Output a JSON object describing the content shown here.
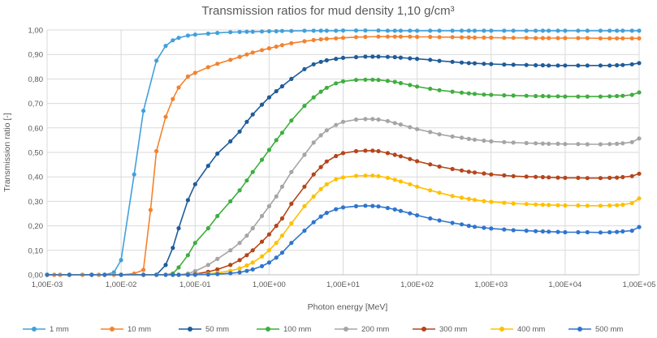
{
  "chart_data": {
    "type": "line",
    "title": "Transmission ratios for mud density 1,10 g/cm³",
    "xlabel": "Photon energy [MeV]",
    "ylabel": "Transmission ratio [-]",
    "xscale": "log",
    "xlim": [
      0.001,
      100000
    ],
    "ylim": [
      0,
      1
    ],
    "grid": true,
    "legend_position": "bottom",
    "x_tick_labels": [
      "1,00E-03",
      "1,00E-02",
      "1,00E-01",
      "1,00E+00",
      "1,00E+01",
      "1,00E+02",
      "1,00E+03",
      "1,00E+04",
      "1,00E+05"
    ],
    "y_tick_labels": [
      "0,00",
      "0,10",
      "0,20",
      "0,30",
      "0,40",
      "0,50",
      "0,60",
      "0,70",
      "0,80",
      "0,90",
      "1,00"
    ],
    "y_ticks": [
      0,
      0.1,
      0.2,
      0.3,
      0.4,
      0.5,
      0.6,
      0.7,
      0.8,
      0.9,
      1.0
    ],
    "x_ticks": [
      0.001,
      0.01,
      0.1,
      1,
      10,
      100,
      1000,
      10000,
      100000
    ],
    "series": [
      {
        "name": "1 mm",
        "color": "#41A0DC",
        "x": [
          0.001,
          0.00125,
          0.0015,
          0.002,
          0.003,
          0.004,
          0.005,
          0.006,
          0.008,
          0.01,
          0.015,
          0.02,
          0.03,
          0.04,
          0.05,
          0.06,
          0.08,
          0.1,
          0.15,
          0.2,
          0.3,
          0.4,
          0.5,
          0.6,
          0.8,
          1,
          1.25,
          1.5,
          2,
          3,
          4,
          5,
          6,
          8,
          10,
          15,
          20,
          30,
          40,
          50,
          60,
          80,
          100,
          150,
          200,
          300,
          400,
          500,
          600,
          800,
          1000,
          1500,
          2000,
          3000,
          4000,
          5000,
          6000,
          8000,
          10000,
          15000,
          20000,
          30000,
          40000,
          50000,
          60000,
          80000,
          100000
        ],
        "y": [
          0,
          0,
          0,
          0,
          0,
          0,
          0,
          0,
          0.01,
          0.06,
          0.41,
          0.67,
          0.875,
          0.935,
          0.958,
          0.968,
          0.977,
          0.981,
          0.985,
          0.988,
          0.991,
          0.992,
          0.993,
          0.993,
          0.994,
          0.995,
          0.995,
          0.996,
          0.996,
          0.997,
          0.997,
          0.997,
          0.997,
          0.997,
          0.998,
          0.998,
          0.998,
          0.998,
          0.997,
          0.997,
          0.997,
          0.997,
          0.997,
          0.997,
          0.997,
          0.997,
          0.997,
          0.997,
          0.997,
          0.997,
          0.997,
          0.997,
          0.997,
          0.997,
          0.997,
          0.997,
          0.997,
          0.997,
          0.997,
          0.997,
          0.997,
          0.997,
          0.997,
          0.997,
          0.997,
          0.997,
          0.997
        ]
      },
      {
        "name": "10 mm",
        "color": "#F5822D",
        "x": [
          0.001,
          0.00125,
          0.0015,
          0.002,
          0.003,
          0.004,
          0.005,
          0.006,
          0.008,
          0.01,
          0.015,
          0.02,
          0.025,
          0.03,
          0.04,
          0.05,
          0.06,
          0.08,
          0.1,
          0.15,
          0.2,
          0.3,
          0.4,
          0.5,
          0.6,
          0.8,
          1,
          1.25,
          1.5,
          2,
          3,
          4,
          5,
          6,
          8,
          10,
          15,
          20,
          30,
          40,
          50,
          60,
          80,
          100,
          150,
          200,
          300,
          400,
          500,
          600,
          800,
          1000,
          1500,
          2000,
          3000,
          4000,
          5000,
          6000,
          8000,
          10000,
          15000,
          20000,
          30000,
          40000,
          50000,
          60000,
          80000,
          100000
        ],
        "y": [
          0,
          0,
          0,
          0,
          0,
          0,
          0,
          0,
          0,
          0,
          0.005,
          0.02,
          0.265,
          0.505,
          0.645,
          0.718,
          0.765,
          0.81,
          0.825,
          0.848,
          0.862,
          0.878,
          0.89,
          0.9,
          0.908,
          0.918,
          0.925,
          0.932,
          0.938,
          0.946,
          0.954,
          0.959,
          0.962,
          0.964,
          0.966,
          0.968,
          0.971,
          0.972,
          0.973,
          0.973,
          0.973,
          0.973,
          0.973,
          0.972,
          0.972,
          0.971,
          0.971,
          0.97,
          0.97,
          0.969,
          0.969,
          0.969,
          0.968,
          0.968,
          0.968,
          0.967,
          0.967,
          0.967,
          0.967,
          0.967,
          0.967,
          0.967,
          0.966,
          0.966,
          0.966,
          0.966,
          0.966,
          0.966
        ]
      },
      {
        "name": "50 mm",
        "color": "#1F5C99",
        "x": [
          0.001,
          0.002,
          0.004,
          0.006,
          0.01,
          0.02,
          0.03,
          0.04,
          0.05,
          0.06,
          0.08,
          0.1,
          0.15,
          0.2,
          0.3,
          0.4,
          0.5,
          0.6,
          0.8,
          1,
          1.25,
          1.5,
          2,
          3,
          4,
          5,
          6,
          8,
          10,
          15,
          20,
          25,
          30,
          40,
          50,
          60,
          80,
          100,
          150,
          200,
          300,
          400,
          500,
          600,
          800,
          1000,
          1500,
          2000,
          3000,
          4000,
          5000,
          6000,
          8000,
          10000,
          15000,
          20000,
          30000,
          40000,
          50000,
          60000,
          80000,
          100000
        ],
        "y": [
          0,
          0,
          0,
          0,
          0,
          0,
          0,
          0.04,
          0.11,
          0.19,
          0.305,
          0.37,
          0.445,
          0.495,
          0.545,
          0.585,
          0.625,
          0.655,
          0.695,
          0.725,
          0.75,
          0.77,
          0.8,
          0.84,
          0.86,
          0.87,
          0.876,
          0.882,
          0.886,
          0.889,
          0.891,
          0.891,
          0.891,
          0.89,
          0.889,
          0.887,
          0.884,
          0.882,
          0.878,
          0.874,
          0.87,
          0.867,
          0.865,
          0.864,
          0.862,
          0.861,
          0.859,
          0.858,
          0.857,
          0.856,
          0.856,
          0.855,
          0.855,
          0.855,
          0.855,
          0.855,
          0.855,
          0.855,
          0.856,
          0.857,
          0.86,
          0.865
        ]
      },
      {
        "name": "100 mm",
        "color": "#3FAE3F",
        "x": [
          0.001,
          0.002,
          0.004,
          0.006,
          0.01,
          0.02,
          0.03,
          0.04,
          0.05,
          0.06,
          0.08,
          0.1,
          0.15,
          0.2,
          0.3,
          0.4,
          0.5,
          0.6,
          0.8,
          1,
          1.25,
          1.5,
          2,
          3,
          4,
          5,
          6,
          8,
          10,
          15,
          20,
          25,
          30,
          40,
          50,
          60,
          80,
          100,
          150,
          200,
          300,
          400,
          500,
          600,
          800,
          1000,
          1500,
          2000,
          3000,
          4000,
          5000,
          6000,
          8000,
          10000,
          15000,
          20000,
          30000,
          40000,
          50000,
          60000,
          80000,
          100000
        ],
        "y": [
          0,
          0,
          0,
          0,
          0,
          0,
          0,
          0,
          0.005,
          0.03,
          0.08,
          0.13,
          0.19,
          0.24,
          0.3,
          0.345,
          0.385,
          0.42,
          0.47,
          0.51,
          0.55,
          0.58,
          0.63,
          0.69,
          0.725,
          0.748,
          0.764,
          0.782,
          0.79,
          0.796,
          0.797,
          0.797,
          0.796,
          0.792,
          0.788,
          0.783,
          0.775,
          0.769,
          0.76,
          0.754,
          0.748,
          0.744,
          0.741,
          0.739,
          0.736,
          0.735,
          0.733,
          0.732,
          0.731,
          0.73,
          0.73,
          0.729,
          0.729,
          0.728,
          0.728,
          0.728,
          0.728,
          0.729,
          0.73,
          0.731,
          0.735,
          0.745
        ]
      },
      {
        "name": "200 mm",
        "color": "#A5A5A5",
        "x": [
          0.001,
          0.002,
          0.004,
          0.006,
          0.01,
          0.02,
          0.03,
          0.04,
          0.05,
          0.06,
          0.08,
          0.1,
          0.15,
          0.2,
          0.3,
          0.4,
          0.5,
          0.6,
          0.8,
          1,
          1.25,
          1.5,
          2,
          3,
          4,
          5,
          6,
          8,
          10,
          15,
          20,
          25,
          30,
          40,
          50,
          60,
          80,
          100,
          150,
          200,
          300,
          400,
          500,
          600,
          800,
          1000,
          1500,
          2000,
          3000,
          4000,
          5000,
          6000,
          8000,
          10000,
          15000,
          20000,
          30000,
          40000,
          50000,
          60000,
          80000,
          100000
        ],
        "y": [
          0,
          0,
          0,
          0,
          0,
          0,
          0,
          0,
          0,
          0,
          0.005,
          0.015,
          0.04,
          0.065,
          0.1,
          0.13,
          0.16,
          0.19,
          0.24,
          0.28,
          0.32,
          0.36,
          0.42,
          0.49,
          0.54,
          0.57,
          0.59,
          0.612,
          0.625,
          0.634,
          0.636,
          0.636,
          0.634,
          0.628,
          0.62,
          0.614,
          0.603,
          0.595,
          0.583,
          0.574,
          0.565,
          0.56,
          0.555,
          0.552,
          0.548,
          0.545,
          0.542,
          0.54,
          0.538,
          0.537,
          0.536,
          0.535,
          0.535,
          0.534,
          0.534,
          0.533,
          0.533,
          0.534,
          0.535,
          0.537,
          0.542,
          0.557
        ]
      },
      {
        "name": "300 mm",
        "color": "#B5451B",
        "x": [
          0.001,
          0.002,
          0.004,
          0.006,
          0.01,
          0.02,
          0.03,
          0.04,
          0.05,
          0.06,
          0.08,
          0.1,
          0.15,
          0.2,
          0.3,
          0.4,
          0.5,
          0.6,
          0.8,
          1,
          1.25,
          1.5,
          2,
          3,
          4,
          5,
          6,
          8,
          10,
          15,
          20,
          25,
          30,
          40,
          50,
          60,
          80,
          100,
          150,
          200,
          300,
          400,
          500,
          600,
          800,
          1000,
          1500,
          2000,
          3000,
          4000,
          5000,
          6000,
          8000,
          10000,
          15000,
          20000,
          30000,
          40000,
          50000,
          60000,
          80000,
          100000
        ],
        "y": [
          0,
          0,
          0,
          0,
          0,
          0,
          0,
          0,
          0,
          0,
          0,
          0.003,
          0.012,
          0.022,
          0.04,
          0.06,
          0.08,
          0.1,
          0.135,
          0.165,
          0.2,
          0.23,
          0.29,
          0.36,
          0.41,
          0.44,
          0.463,
          0.485,
          0.497,
          0.505,
          0.507,
          0.507,
          0.505,
          0.497,
          0.49,
          0.484,
          0.473,
          0.464,
          0.451,
          0.442,
          0.432,
          0.426,
          0.421,
          0.418,
          0.414,
          0.41,
          0.406,
          0.403,
          0.401,
          0.4,
          0.399,
          0.398,
          0.397,
          0.396,
          0.396,
          0.395,
          0.395,
          0.396,
          0.397,
          0.399,
          0.403,
          0.413
        ]
      },
      {
        "name": "400 mm",
        "color": "#FFC000",
        "x": [
          0.001,
          0.002,
          0.004,
          0.006,
          0.01,
          0.02,
          0.03,
          0.04,
          0.05,
          0.06,
          0.08,
          0.1,
          0.15,
          0.2,
          0.3,
          0.4,
          0.5,
          0.6,
          0.8,
          1,
          1.25,
          1.5,
          2,
          3,
          4,
          5,
          6,
          8,
          10,
          15,
          20,
          25,
          30,
          40,
          50,
          60,
          80,
          100,
          150,
          200,
          300,
          400,
          500,
          600,
          800,
          1000,
          1500,
          2000,
          3000,
          4000,
          5000,
          6000,
          8000,
          10000,
          15000,
          20000,
          30000,
          40000,
          50000,
          60000,
          80000,
          100000
        ],
        "y": [
          0,
          0,
          0,
          0,
          0,
          0,
          0,
          0,
          0,
          0,
          0,
          0.001,
          0.004,
          0.008,
          0.016,
          0.026,
          0.038,
          0.05,
          0.075,
          0.1,
          0.13,
          0.16,
          0.21,
          0.28,
          0.32,
          0.35,
          0.37,
          0.39,
          0.398,
          0.404,
          0.405,
          0.405,
          0.403,
          0.396,
          0.388,
          0.381,
          0.37,
          0.36,
          0.345,
          0.335,
          0.322,
          0.315,
          0.31,
          0.306,
          0.301,
          0.298,
          0.294,
          0.291,
          0.289,
          0.287,
          0.286,
          0.285,
          0.284,
          0.283,
          0.283,
          0.282,
          0.282,
          0.283,
          0.284,
          0.286,
          0.293,
          0.312
        ]
      },
      {
        "name": "500 mm",
        "color": "#2E75CF",
        "x": [
          0.001,
          0.002,
          0.004,
          0.006,
          0.01,
          0.02,
          0.03,
          0.04,
          0.05,
          0.06,
          0.08,
          0.1,
          0.15,
          0.2,
          0.3,
          0.4,
          0.5,
          0.6,
          0.8,
          1,
          1.25,
          1.5,
          2,
          3,
          4,
          5,
          6,
          8,
          10,
          15,
          20,
          25,
          30,
          40,
          50,
          60,
          80,
          100,
          150,
          200,
          300,
          400,
          500,
          600,
          800,
          1000,
          1500,
          2000,
          3000,
          4000,
          5000,
          6000,
          8000,
          10000,
          15000,
          20000,
          30000,
          40000,
          50000,
          60000,
          80000,
          100000
        ],
        "y": [
          0,
          0,
          0,
          0,
          0,
          0,
          0,
          0,
          0,
          0,
          0,
          0,
          0.001,
          0.003,
          0.006,
          0.01,
          0.016,
          0.022,
          0.035,
          0.05,
          0.07,
          0.09,
          0.13,
          0.18,
          0.215,
          0.238,
          0.253,
          0.268,
          0.275,
          0.28,
          0.282,
          0.281,
          0.279,
          0.273,
          0.267,
          0.261,
          0.251,
          0.243,
          0.23,
          0.222,
          0.212,
          0.206,
          0.2,
          0.196,
          0.192,
          0.189,
          0.185,
          0.182,
          0.18,
          0.178,
          0.177,
          0.176,
          0.175,
          0.174,
          0.174,
          0.174,
          0.173,
          0.174,
          0.175,
          0.177,
          0.18,
          0.195
        ]
      }
    ]
  }
}
